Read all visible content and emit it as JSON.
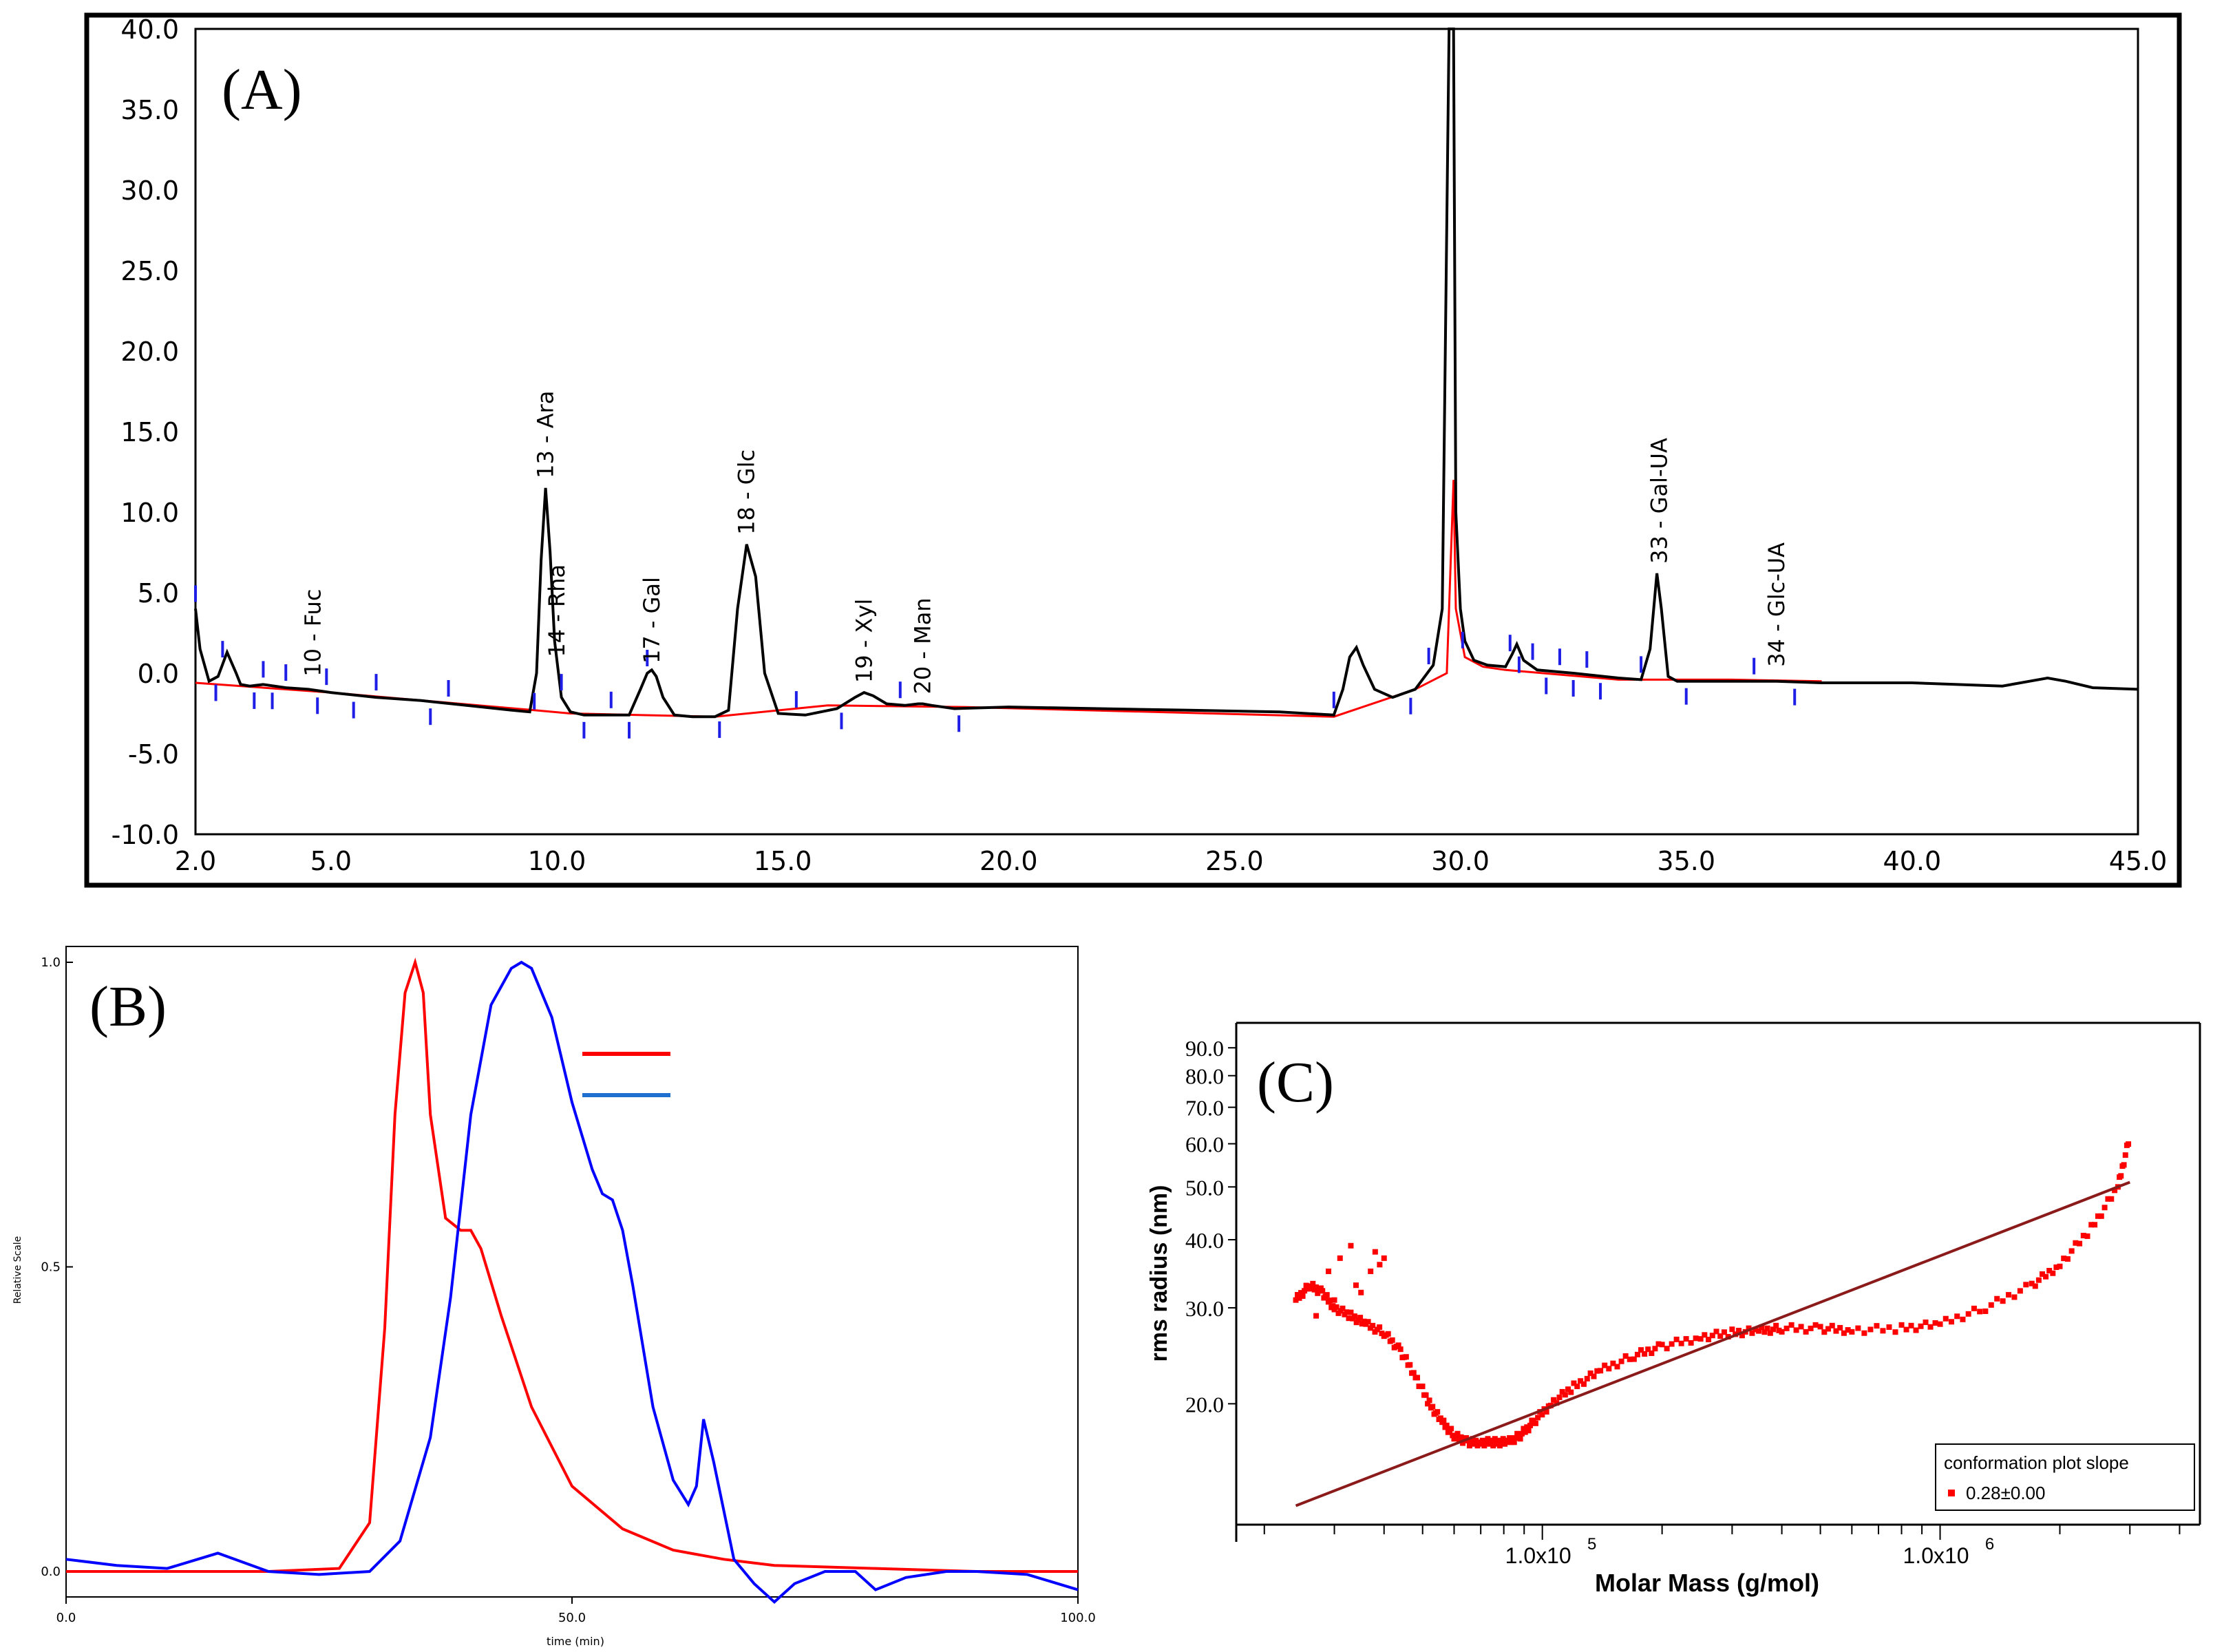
{
  "chart_data": [
    {
      "type": "line",
      "panel_label": "(A)",
      "xlim": [
        2.0,
        45.0
      ],
      "ylim": [
        -10.0,
        40.0
      ],
      "x_ticks": [
        "2.0",
        "5.0",
        "10.0",
        "15.0",
        "20.0",
        "25.0",
        "30.0",
        "35.0",
        "40.0",
        "45.0"
      ],
      "y_ticks": [
        "40.0",
        "35.0",
        "30.0",
        "25.0",
        "20.0",
        "15.0",
        "10.0",
        "5.0",
        "0.0",
        "-5.0",
        "-10.0"
      ],
      "peaks": [
        {
          "label": "10 - Fuc",
          "x": 4.6,
          "y": -0.8
        },
        {
          "label": "13 - Ara",
          "x": 9.75,
          "y": 11.5
        },
        {
          "label": "14 - Rha",
          "x": 10.0,
          "y": 0.4
        },
        {
          "label": "17 - Gal",
          "x": 12.1,
          "y": 0.0
        },
        {
          "label": "18 - Glc",
          "x": 14.2,
          "y": 8.0
        },
        {
          "label": "19 - Xyl",
          "x": 16.8,
          "y": -1.2
        },
        {
          "label": "20 - Man",
          "x": 18.1,
          "y": -1.9
        },
        {
          "label": "33 - Gal-UA",
          "x": 34.4,
          "y": 6.2
        },
        {
          "label": "34 - Glc-UA",
          "x": 37.0,
          "y": -0.2
        }
      ],
      "series": [
        {
          "name": "chromatogram",
          "color": "#000000",
          "x": [
            2.0,
            2.1,
            2.3,
            2.5,
            2.7,
            2.9,
            3.0,
            3.2,
            3.5,
            4.0,
            4.5,
            5.0,
            6.0,
            7.0,
            8.0,
            9.0,
            9.4,
            9.55,
            9.65,
            9.75,
            9.85,
            9.95,
            10.1,
            10.3,
            10.6,
            11.0,
            11.6,
            11.85,
            12.0,
            12.1,
            12.2,
            12.35,
            12.6,
            13.0,
            13.5,
            13.8,
            14.0,
            14.2,
            14.4,
            14.6,
            14.9,
            15.5,
            16.2,
            16.6,
            16.8,
            17.0,
            17.3,
            17.7,
            18.0,
            18.1,
            18.3,
            18.8,
            20.0,
            22.0,
            24.0,
            26.0,
            27.2,
            27.4,
            27.55,
            27.7,
            27.85,
            28.1,
            28.5,
            29.0,
            29.4,
            29.6,
            29.75,
            29.8,
            29.85,
            29.9,
            30.0,
            30.1,
            30.3,
            30.6,
            31.0,
            31.15,
            31.25,
            31.4,
            31.7,
            32.5,
            33.5,
            34.0,
            34.2,
            34.35,
            34.45,
            34.6,
            34.8,
            35.2,
            36.0,
            37.0,
            38.0,
            40.0,
            41.0,
            42.0,
            42.6,
            43.0,
            43.4,
            44.0,
            45.0
          ],
          "y": [
            4.0,
            1.5,
            -0.5,
            -0.2,
            1.3,
            0.0,
            -0.7,
            -0.8,
            -0.7,
            -0.9,
            -1.0,
            -1.2,
            -1.5,
            -1.7,
            -2.0,
            -2.3,
            -2.4,
            0.0,
            7.0,
            11.5,
            7.5,
            2.0,
            -1.5,
            -2.4,
            -2.6,
            -2.6,
            -2.6,
            -1.0,
            0.0,
            0.2,
            -0.2,
            -1.5,
            -2.6,
            -2.7,
            -2.7,
            -2.3,
            4.0,
            8.0,
            6.0,
            0.0,
            -2.5,
            -2.6,
            -2.2,
            -1.5,
            -1.2,
            -1.4,
            -1.9,
            -2.0,
            -1.9,
            -1.9,
            -2.0,
            -2.2,
            -2.1,
            -2.2,
            -2.3,
            -2.4,
            -2.6,
            -1.0,
            1.0,
            1.6,
            0.5,
            -1.0,
            -1.5,
            -1.0,
            0.5,
            4.0,
            40.0,
            40.0,
            40.0,
            10.0,
            4.0,
            2.0,
            0.8,
            0.5,
            0.4,
            1.2,
            1.8,
            0.8,
            0.2,
            0.0,
            -0.3,
            -0.4,
            1.5,
            6.2,
            4.0,
            -0.2,
            -0.5,
            -0.5,
            -0.5,
            -0.5,
            -0.6,
            -0.6,
            -0.7,
            -0.8,
            -0.5,
            -0.3,
            -0.5,
            -0.9,
            -1.0
          ]
        },
        {
          "name": "baseline",
          "color": "#ff0000",
          "x": [
            2.0,
            5.0,
            9.5,
            10.3,
            13.5,
            16.0,
            19.0,
            27.2,
            29.0,
            29.7,
            29.85,
            29.9,
            30.1,
            30.5,
            31.0,
            33.5,
            36.0,
            38.0
          ],
          "y": [
            -0.6,
            -1.2,
            -2.3,
            -2.5,
            -2.7,
            -2.0,
            -2.1,
            -2.7,
            -1.0,
            0.0,
            12.0,
            4.0,
            1.0,
            0.4,
            0.2,
            -0.4,
            -0.4,
            -0.5
          ]
        }
      ]
    },
    {
      "type": "line",
      "panel_label": "(B)",
      "xlabel": "time (min)",
      "ylabel": "Relative Scale",
      "xlim": [
        0.0,
        100.0
      ],
      "ylim": [
        0.0,
        1.0
      ],
      "x_ticks": [
        "0.0",
        "50.0",
        "100.0"
      ],
      "y_ticks": [
        "1.0",
        "0.5",
        "0.0"
      ],
      "legend_entries": [
        "",
        ""
      ],
      "series": [
        {
          "name": "red trace",
          "color": "#ff0000",
          "x": [
            0,
            10,
            20,
            27,
            30,
            31.5,
            32.5,
            33.5,
            34.5,
            35.3,
            36,
            37.5,
            39,
            40,
            41,
            43,
            46,
            50,
            55,
            60,
            65,
            70,
            80,
            90,
            100
          ],
          "y": [
            0.0,
            0.0,
            0.0,
            0.005,
            0.08,
            0.4,
            0.75,
            0.95,
            1.0,
            0.95,
            0.75,
            0.58,
            0.56,
            0.56,
            0.53,
            0.42,
            0.27,
            0.14,
            0.07,
            0.035,
            0.02,
            0.01,
            0.005,
            0.0,
            0.0
          ]
        },
        {
          "name": "blue trace",
          "color": "#0000ff",
          "x": [
            0,
            5,
            10,
            15,
            20,
            25,
            30,
            33,
            36,
            38,
            40,
            42,
            44,
            45,
            46,
            48,
            50,
            52,
            53,
            54,
            55,
            56,
            58,
            60,
            61.5,
            62.3,
            63,
            64,
            65,
            66,
            68,
            70,
            72,
            75,
            78,
            80,
            83,
            87,
            90,
            95,
            98,
            100
          ],
          "y": [
            0.02,
            0.01,
            0.005,
            0.03,
            0.0,
            -0.005,
            0.0,
            0.05,
            0.22,
            0.45,
            0.75,
            0.93,
            0.99,
            1.0,
            0.99,
            0.91,
            0.77,
            0.66,
            0.62,
            0.61,
            0.56,
            0.47,
            0.27,
            0.15,
            0.11,
            0.14,
            0.25,
            0.18,
            0.1,
            0.02,
            -0.02,
            -0.05,
            -0.02,
            0.0,
            0.0,
            -0.03,
            -0.01,
            0.0,
            0.0,
            -0.005,
            -0.02,
            -0.03
          ]
        }
      ]
    },
    {
      "type": "scatter",
      "panel_label": "(C)",
      "xlabel": "Molar Mass (g/mol)",
      "ylabel": "rms radius (nm)",
      "x_scale": "log",
      "y_scale": "log",
      "xlim": [
        17000,
        4500000
      ],
      "ylim": [
        12,
        100
      ],
      "x_ticks": [
        {
          "base": "1.0x10",
          "exp": "5"
        },
        {
          "base": "1.0x10",
          "exp": "6"
        }
      ],
      "y_ticks": [
        "90.0",
        "80.0",
        "70.0",
        "60.0",
        "50.0",
        "40.0",
        "30.0",
        "20.0"
      ],
      "legend": {
        "title": "conformation plot slope",
        "entry": "0.28±0.00"
      },
      "fit_line": {
        "name": "fit",
        "color": "#8b1a1a",
        "x": [
          24000,
          3000000
        ],
        "y": [
          13.0,
          51.0
        ]
      },
      "series": [
        {
          "name": "conformation data",
          "color": "#ff0000",
          "x": [
            24000,
            26000,
            28000,
            30000,
            33000,
            36000,
            40000,
            44000,
            48000,
            52000,
            56000,
            60000,
            65000,
            70000,
            76000,
            82000,
            88000,
            95000,
            105000,
            120000,
            140000,
            170000,
            200000,
            250000,
            300000,
            350000,
            400000,
            500000,
            600000,
            800000,
            1000000,
            1300000,
            1700000,
            2000000,
            2400000,
            2800000,
            3000000
          ],
          "y": [
            31,
            33,
            32,
            30,
            29,
            28,
            27,
            25,
            22.5,
            20,
            18.5,
            17.5,
            17,
            17,
            17,
            17,
            17.5,
            18.5,
            20,
            21.5,
            23,
            24.5,
            25.5,
            26.5,
            27,
            27.2,
            27.5,
            27.5,
            27.3,
            27.5,
            28,
            30,
            33,
            36,
            42,
            50,
            62
          ]
        },
        {
          "name": "scattered points",
          "color": "#ff0000",
          "x": [
            29000,
            31000,
            33000,
            35000,
            37000,
            38000,
            39000,
            40000,
            27000,
            30000,
            34000
          ],
          "y": [
            35,
            37,
            39,
            32,
            35,
            38,
            36,
            37,
            29,
            31,
            33
          ]
        }
      ]
    }
  ]
}
